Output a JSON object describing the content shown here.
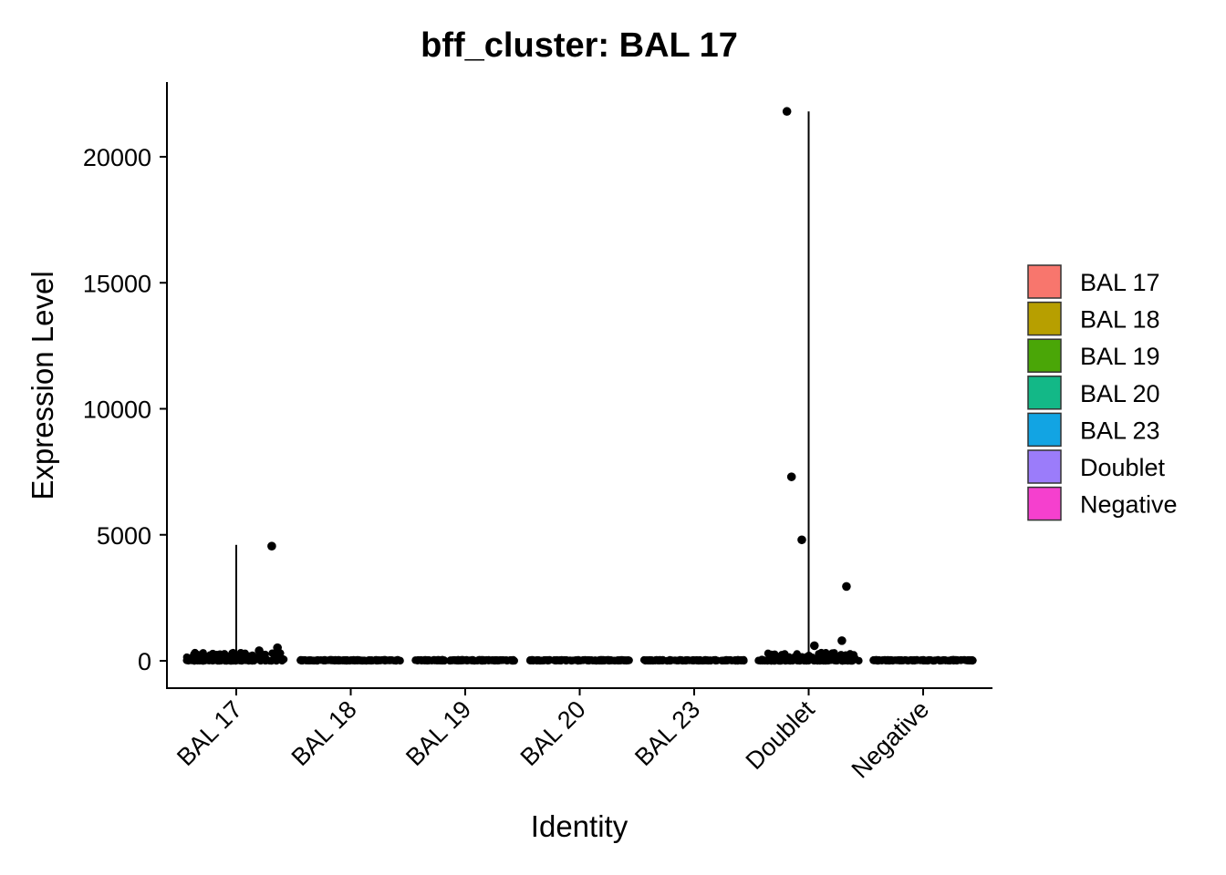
{
  "chart_data": {
    "type": "violin",
    "title": "bff_cluster: BAL 17",
    "xlabel": "Identity",
    "ylabel": "Expression Level",
    "categories": [
      "BAL 17",
      "BAL 18",
      "BAL 19",
      "BAL 20",
      "BAL 23",
      "Doublet",
      "Negative"
    ],
    "y_ticks": [
      0,
      5000,
      10000,
      15000,
      20000
    ],
    "y_tick_labels": [
      "0",
      "5000",
      "10000",
      "15000",
      "20000"
    ],
    "ylim": [
      -1050,
      23000
    ],
    "violin_max": [
      4600,
      0,
      0,
      0,
      0,
      21800,
      0
    ],
    "notable_points": [
      {
        "category": "BAL 17",
        "offset": 0.31,
        "y": 4550
      },
      {
        "category": "BAL 17",
        "offset": 0.36,
        "y": 520
      },
      {
        "category": "BAL 17",
        "offset": 0.2,
        "y": 400
      },
      {
        "category": "Doublet",
        "offset": -0.19,
        "y": 21800
      },
      {
        "category": "Doublet",
        "offset": -0.15,
        "y": 7300
      },
      {
        "category": "Doublet",
        "offset": -0.06,
        "y": 4800
      },
      {
        "category": "Doublet",
        "offset": 0.33,
        "y": 2950
      },
      {
        "category": "Doublet",
        "offset": 0.29,
        "y": 800
      },
      {
        "category": "Doublet",
        "offset": 0.05,
        "y": 600
      }
    ],
    "legend": {
      "position": "right",
      "entries": [
        {
          "label": "BAL 17",
          "color": "#F8766D"
        },
        {
          "label": "BAL 18",
          "color": "#B79F00"
        },
        {
          "label": "BAL 19",
          "color": "#4AA607"
        },
        {
          "label": "BAL 20",
          "color": "#13B887"
        },
        {
          "label": "BAL 23",
          "color": "#12A4E3"
        },
        {
          "label": "Doublet",
          "color": "#9B7CFA"
        },
        {
          "label": "Negative",
          "color": "#F540CE"
        }
      ]
    },
    "grid": false
  }
}
